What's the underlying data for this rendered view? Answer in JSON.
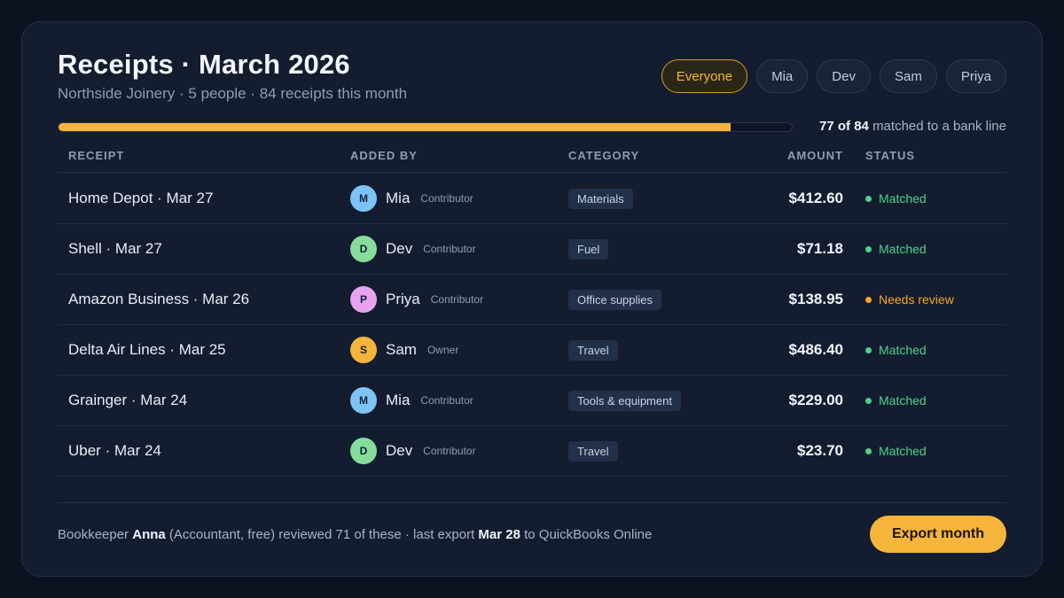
{
  "header": {
    "title": "Receipts · March 2026",
    "subtitle": "Northside Joinery · 5 people · 84 receipts this month"
  },
  "filters": [
    {
      "label": "Everyone",
      "active": true
    },
    {
      "label": "Mia",
      "active": false
    },
    {
      "label": "Dev",
      "active": false
    },
    {
      "label": "Sam",
      "active": false
    },
    {
      "label": "Priya",
      "active": false
    }
  ],
  "progress": {
    "matched": 77,
    "total": 84,
    "count_text": "77 of 84",
    "suffix_text": "matched to a bank line",
    "fill_color": "#f5b43a"
  },
  "table": {
    "headers": {
      "receipt": "RECEIPT",
      "added_by": "ADDED BY",
      "category": "CATEGORY",
      "amount": "AMOUNT",
      "status": "STATUS"
    },
    "rows": [
      {
        "receipt": "Home Depot · Mar 27",
        "initial": "M",
        "name": "Mia",
        "role": "Contributor",
        "avatar_color": "#7dc3f5",
        "category": "Materials",
        "amount": "$412.60",
        "status": "Matched",
        "status_color": "#4ed08a"
      },
      {
        "receipt": "Shell · Mar 27",
        "initial": "D",
        "name": "Dev",
        "role": "Contributor",
        "avatar_color": "#86dc9a",
        "category": "Fuel",
        "amount": "$71.18",
        "status": "Matched",
        "status_color": "#4ed08a"
      },
      {
        "receipt": "Amazon Business · Mar 26",
        "initial": "P",
        "name": "Priya",
        "role": "Contributor",
        "avatar_color": "#e7a3ef",
        "category": "Office supplies",
        "amount": "$138.95",
        "status": "Needs review",
        "status_color": "#f5a623"
      },
      {
        "receipt": "Delta Air Lines · Mar 25",
        "initial": "S",
        "name": "Sam",
        "role": "Owner",
        "avatar_color": "#f5b43a",
        "category": "Travel",
        "amount": "$486.40",
        "status": "Matched",
        "status_color": "#4ed08a"
      },
      {
        "receipt": "Grainger · Mar 24",
        "initial": "M",
        "name": "Mia",
        "role": "Contributor",
        "avatar_color": "#7dc3f5",
        "category": "Tools & equipment",
        "amount": "$229.00",
        "status": "Matched",
        "status_color": "#4ed08a"
      },
      {
        "receipt": "Uber · Mar 24",
        "initial": "D",
        "name": "Dev",
        "role": "Contributor",
        "avatar_color": "#86dc9a",
        "category": "Travel",
        "amount": "$23.70",
        "status": "Matched",
        "status_color": "#4ed08a"
      }
    ]
  },
  "footer": {
    "prefix": "Bookkeeper",
    "name": "Anna",
    "middle": "(Accountant, free) reviewed 71 of these · last export",
    "date": "Mar 28",
    "suffix": "to QuickBooks Online",
    "export_label": "Export month"
  }
}
